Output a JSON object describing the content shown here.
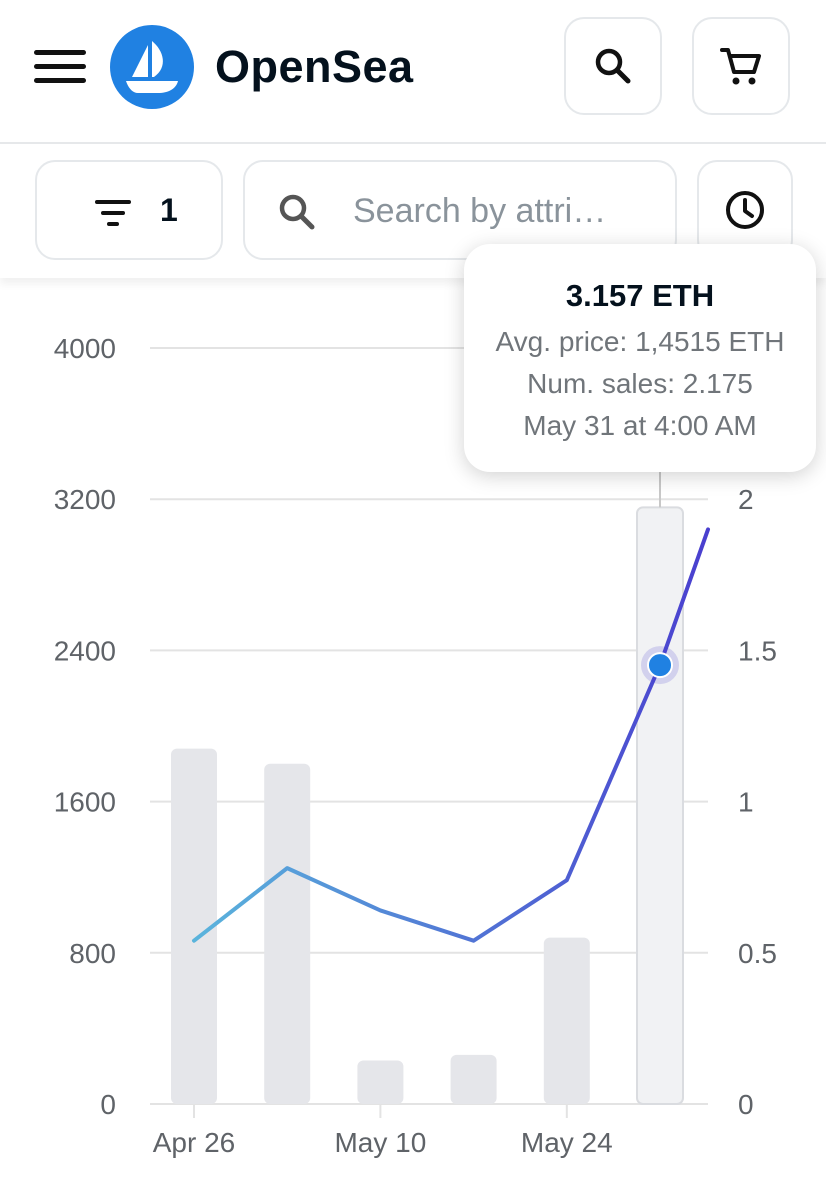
{
  "header": {
    "brand": "OpenSea",
    "icons": {
      "menu": "hamburger-menu-icon",
      "logo": "sailboat-logo-icon",
      "search": "search-icon",
      "cart": "cart-icon"
    }
  },
  "filters": {
    "filter_count": "1",
    "search_placeholder": "Search by attri…",
    "icons": {
      "filter": "filter-icon",
      "search": "search-icon",
      "history": "clock-icon"
    }
  },
  "tooltip": {
    "title": "3.157 ETH",
    "avg_price": "Avg. price: 1,4515 ETH",
    "num_sales": "Num. sales: 2.175",
    "date": "May 31 at 4:00 AM"
  },
  "colors": {
    "accent": "#2081e2",
    "bar": "#e5e6ea",
    "bar_active": "#f1f2f4",
    "line_start": "#5ab4dc",
    "line_end": "#4a3fcf",
    "grid": "#e3e3e3",
    "tick_text": "#5f6368"
  },
  "chart_data": {
    "type": "bar",
    "x_tick_labels": [
      "Apr 26",
      "May 10",
      "May 24"
    ],
    "y_left": {
      "ylim": [
        0,
        4000
      ],
      "ticks": [
        "0",
        "800",
        "1600",
        "2400",
        "3200",
        "4000"
      ]
    },
    "y_right": {
      "ylim": [
        0,
        2.5
      ],
      "ticks": [
        "0",
        "0.5",
        "1",
        "1.5",
        "2"
      ]
    },
    "grid": true,
    "series": [
      {
        "type": "bar",
        "axis": "left",
        "values": [
          1880,
          1800,
          230,
          260,
          880,
          3157
        ]
      },
      {
        "type": "line",
        "axis": "right",
        "values": [
          0.54,
          0.78,
          0.64,
          0.54,
          0.74,
          1.4515,
          1.9
        ]
      }
    ],
    "highlighted_index": 5
  }
}
